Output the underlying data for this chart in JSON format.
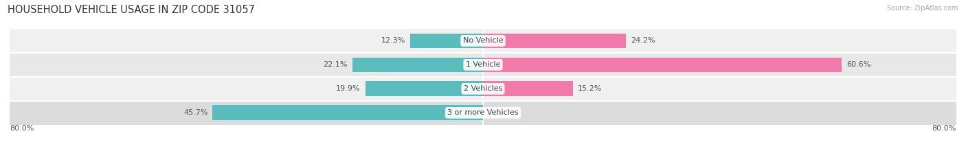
{
  "title": "HOUSEHOLD VEHICLE USAGE IN ZIP CODE 31057",
  "source": "Source: ZipAtlas.com",
  "categories": [
    "No Vehicle",
    "1 Vehicle",
    "2 Vehicles",
    "3 or more Vehicles"
  ],
  "owner_values": [
    12.3,
    22.1,
    19.9,
    45.7
  ],
  "renter_values": [
    24.2,
    60.6,
    15.2,
    0.0
  ],
  "owner_color": "#5bbcbe",
  "renter_color": "#f07aaa",
  "row_bg_colors": [
    "#f0f0f0",
    "#e8e8e8",
    "#f0f0f0",
    "#dcdcdc"
  ],
  "fig_bg_color": "#ffffff",
  "xlim": [
    -80,
    80
  ],
  "title_fontsize": 10.5,
  "label_fontsize": 8,
  "legend_fontsize": 8,
  "bar_height": 0.62,
  "figsize": [
    14.06,
    2.33
  ],
  "dpi": 100
}
